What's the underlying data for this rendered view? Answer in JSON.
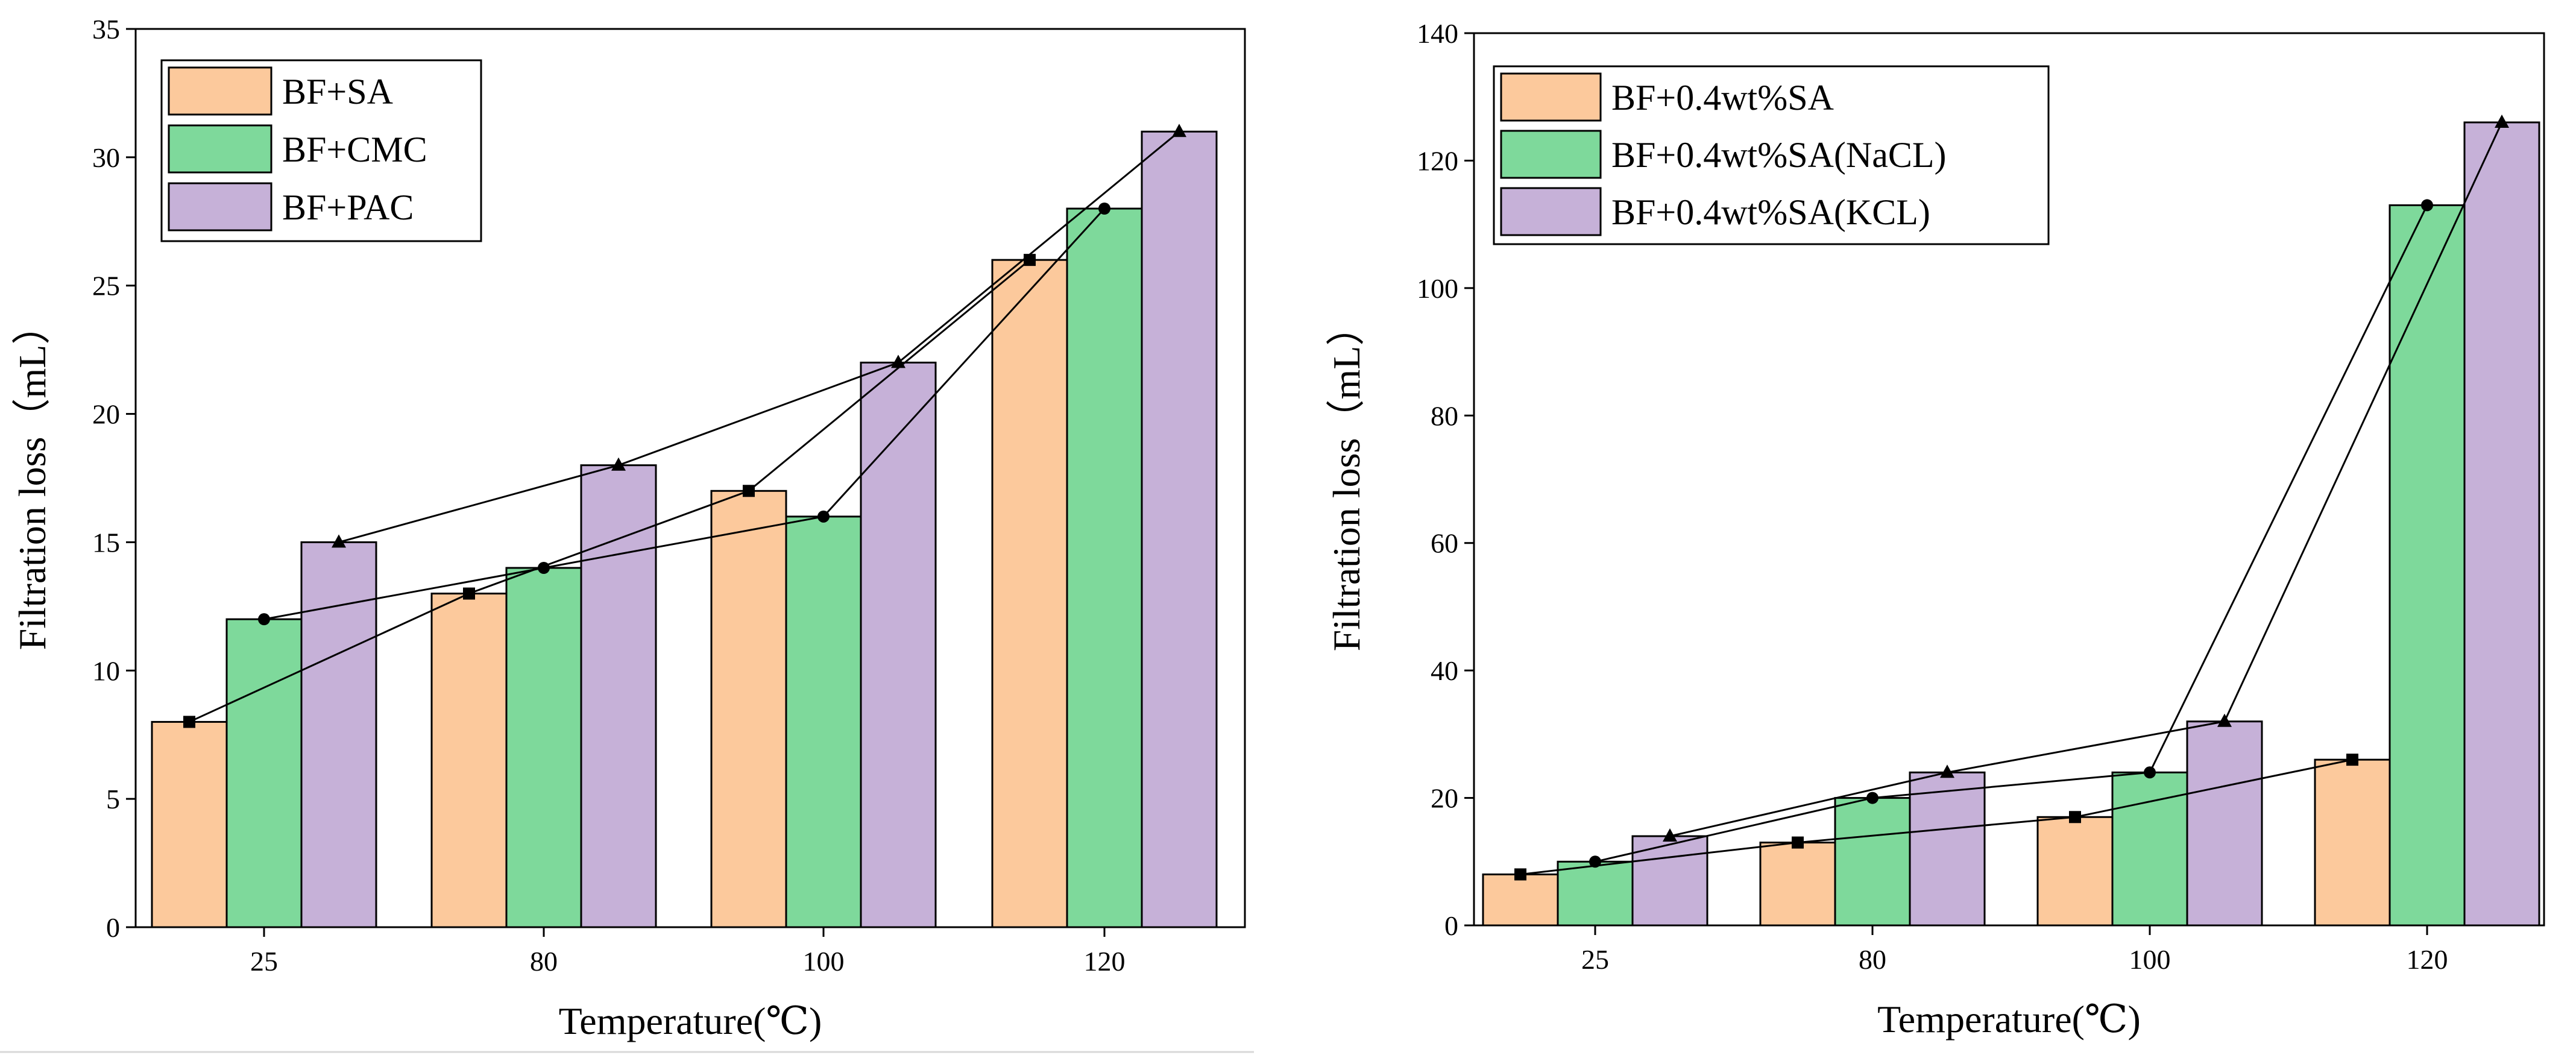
{
  "colors": {
    "sa": "#fcc99c",
    "cmc": "#7ed99b",
    "pac": "#c6b1d8",
    "axis": "#000000",
    "line": "#000000"
  },
  "chart_data": [
    {
      "type": "bar",
      "title": "",
      "xlabel": "Temperature(℃)",
      "ylabel": "Filtration loss（mL）",
      "categories": [
        "25",
        "80",
        "100",
        "120"
      ],
      "ylim": [
        0,
        35
      ],
      "yticks": [
        0,
        5,
        10,
        15,
        20,
        25,
        30,
        35
      ],
      "legend_position": "top-left",
      "series": [
        {
          "name": "BF+SA",
          "color_key": "sa",
          "marker": "square",
          "values": [
            8,
            13,
            17,
            26
          ]
        },
        {
          "name": "BF+CMC",
          "color_key": "cmc",
          "marker": "circle",
          "values": [
            12,
            14,
            16,
            28
          ]
        },
        {
          "name": "BF+PAC",
          "color_key": "pac",
          "marker": "triangle",
          "values": [
            15,
            18,
            22,
            31
          ]
        }
      ],
      "overlay_lines": "each series connected by a line through bar tops"
    },
    {
      "type": "bar",
      "title": "",
      "xlabel": "Temperature(℃)",
      "ylabel": "Filtration loss（mL）",
      "categories": [
        "25",
        "80",
        "100",
        "120"
      ],
      "ylim": [
        0,
        140
      ],
      "yticks": [
        0,
        20,
        40,
        60,
        80,
        100,
        120,
        140
      ],
      "legend_position": "top-left",
      "series": [
        {
          "name": "BF+0.4wt%SA",
          "color_key": "sa",
          "marker": "square",
          "values": [
            8,
            13,
            17,
            26
          ]
        },
        {
          "name": "BF+0.4wt%SA(NaCL)",
          "color_key": "cmc",
          "marker": "circle",
          "values": [
            10,
            20,
            24,
            113
          ]
        },
        {
          "name": "BF+0.4wt%SA(KCL)",
          "color_key": "pac",
          "marker": "triangle",
          "values": [
            14,
            24,
            32,
            126
          ]
        }
      ],
      "overlay_lines": "each series connected by a line through bar tops"
    }
  ]
}
